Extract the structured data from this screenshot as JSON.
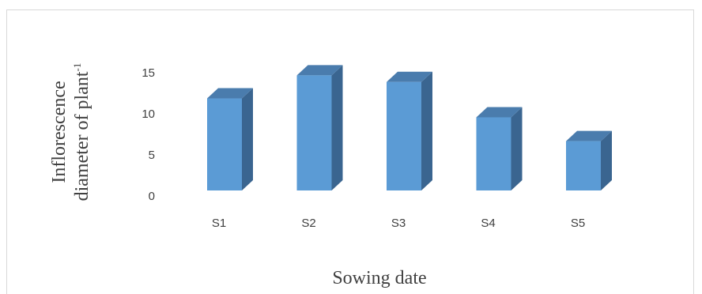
{
  "chart_data": {
    "type": "bar",
    "style": "3d-column",
    "categories": [
      "S1",
      "S2",
      "S3",
      "S4",
      "S5"
    ],
    "values": [
      11.2,
      14.0,
      13.2,
      8.9,
      6.0
    ],
    "xlabel": "Sowing date",
    "ylabel_line1": "Inflorescence",
    "ylabel_line2": "diameter of plant",
    "ylabel_superscript": "-1",
    "ylim": [
      0,
      15
    ],
    "yticks": [
      0,
      5,
      10,
      15
    ],
    "grid": false,
    "legend": "none",
    "colors": {
      "bar_front": "#5b9bd5",
      "bar_side": "#3a6590",
      "bar_top": "#4a7cad"
    }
  }
}
